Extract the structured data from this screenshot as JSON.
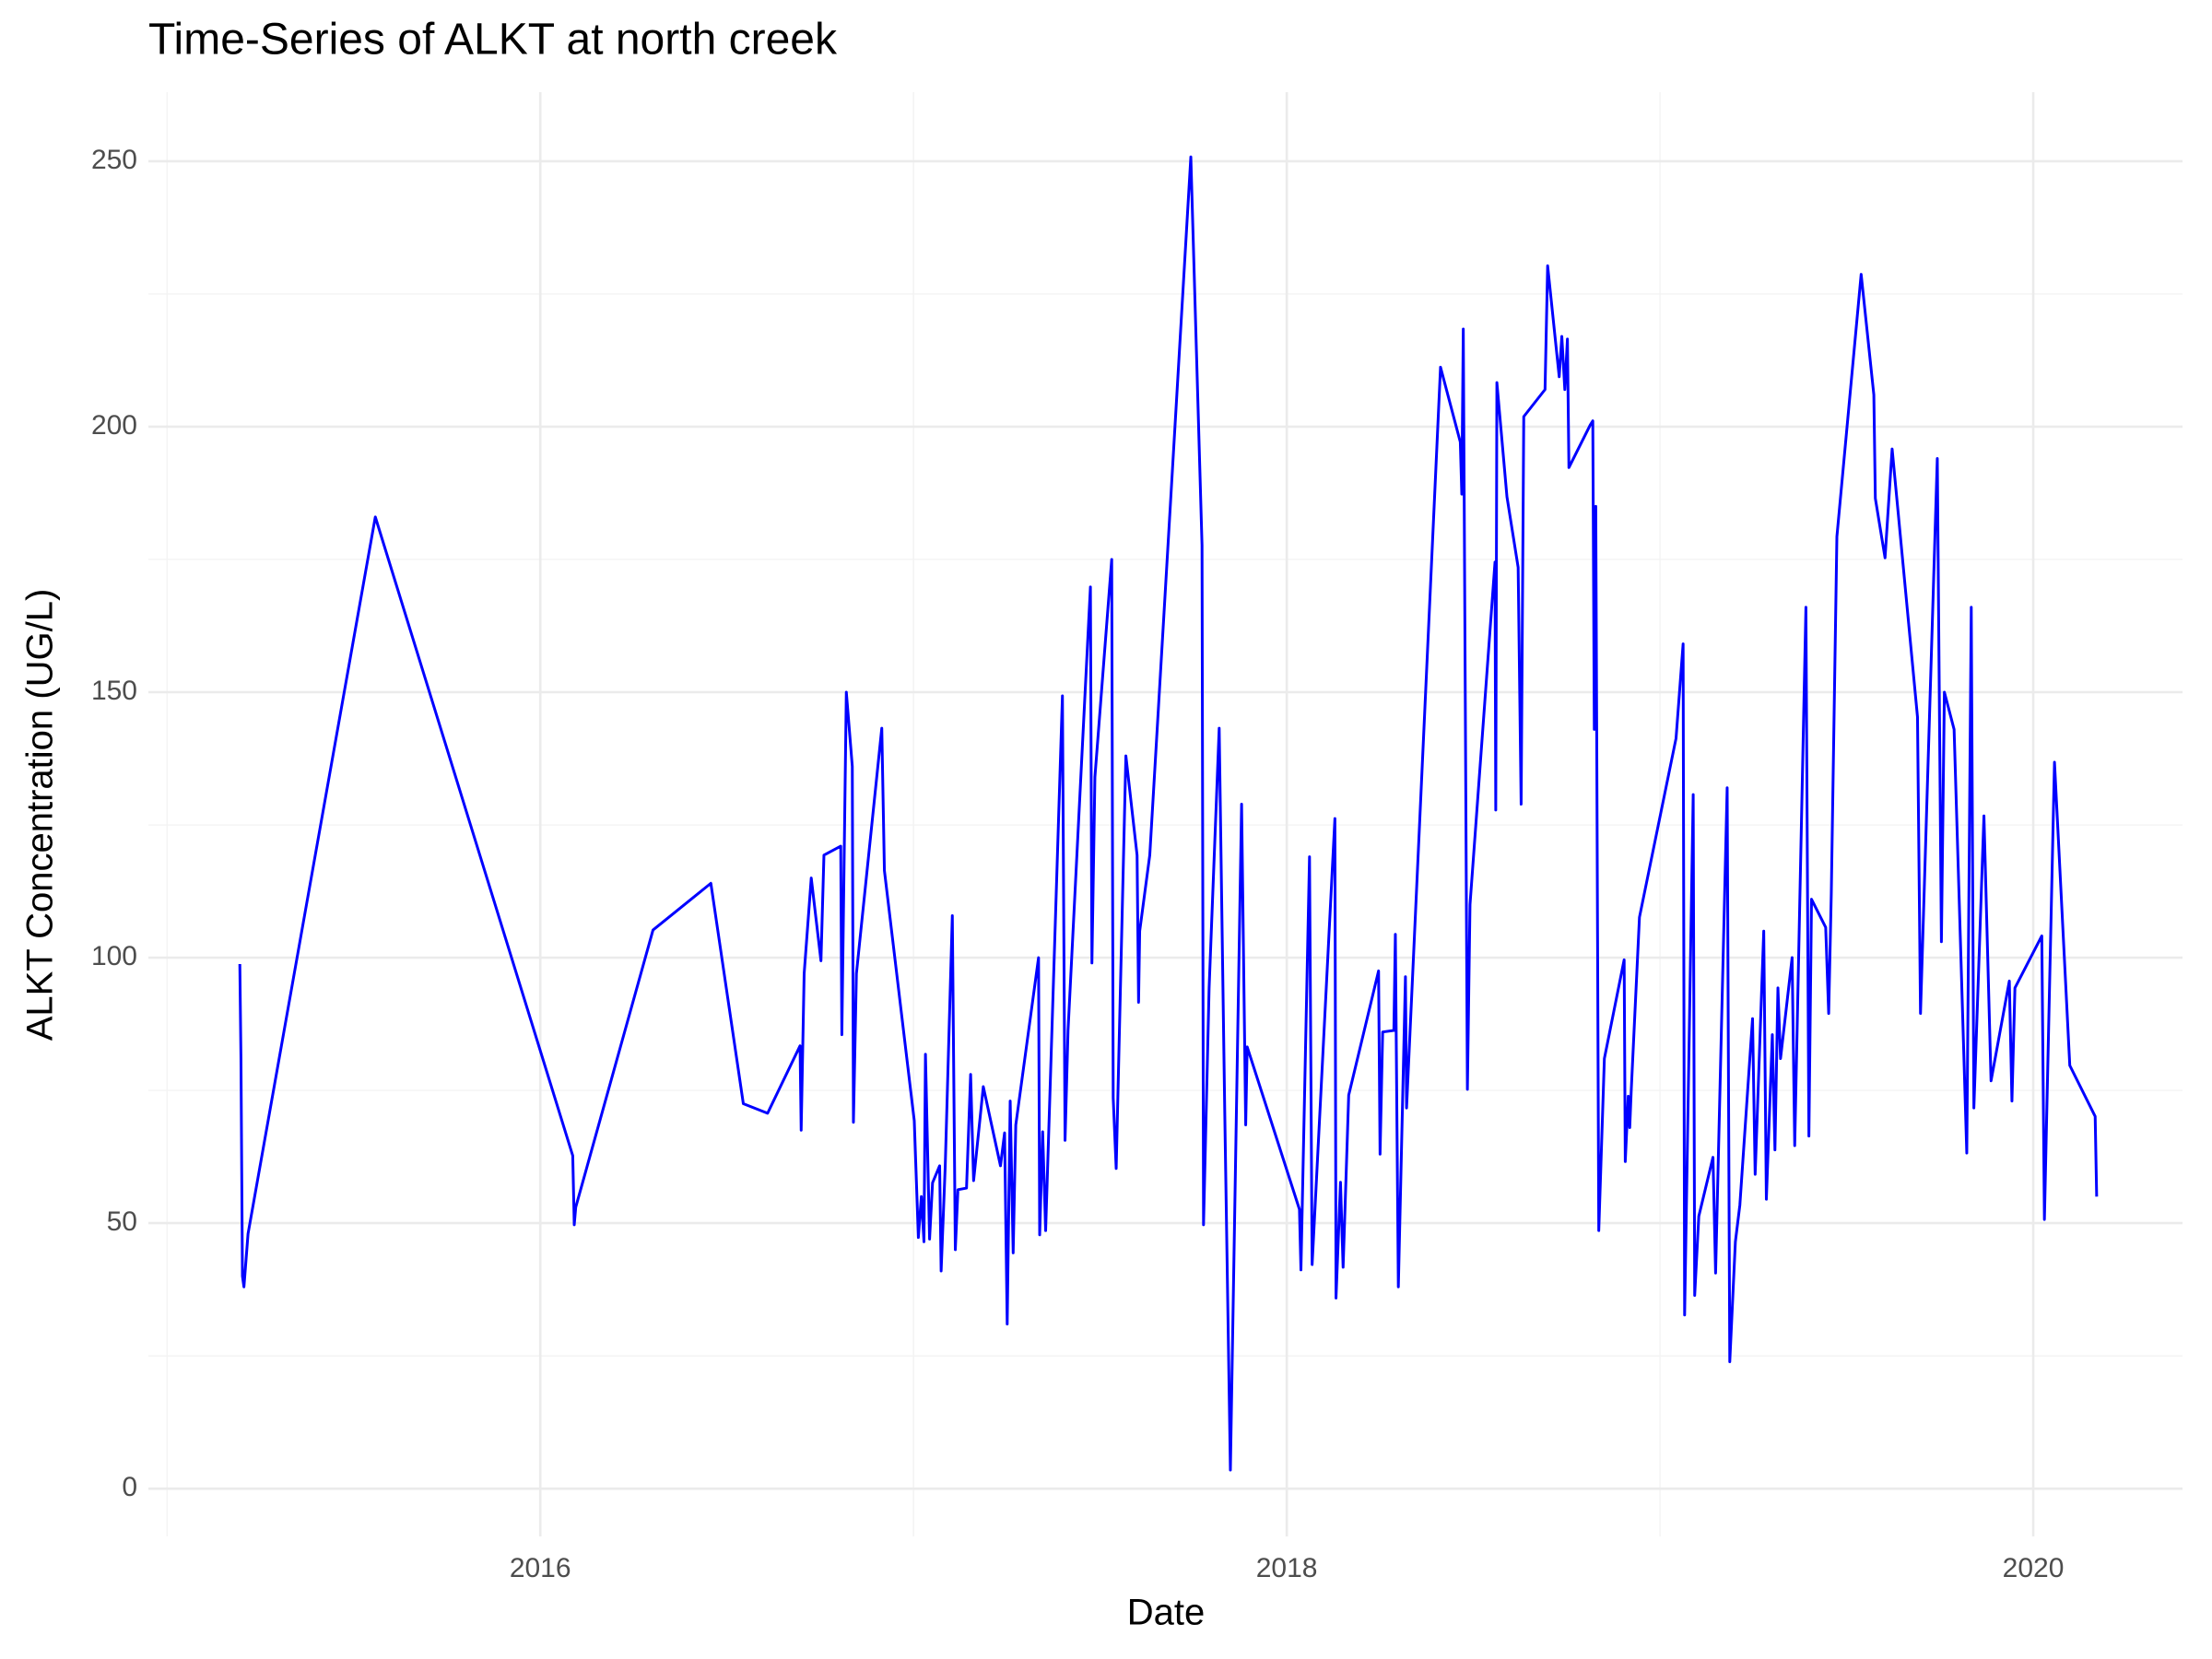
{
  "chart_data": {
    "type": "line",
    "title": "Time-Series of ALKT at north creek",
    "x_label": "Date",
    "y_label": "ALKT Concentration (UG/L)",
    "color": "#0000ff",
    "grid": true,
    "xlim": [
      2014.95,
      2020.4
    ],
    "xticks": [
      2016,
      2018,
      2020
    ],
    "ylim": [
      -9,
      263
    ],
    "yticks": [
      0,
      50,
      100,
      150,
      200,
      250
    ],
    "x": [
      2015.195,
      2015.198,
      2015.202,
      2015.206,
      2015.217,
      2015.558,
      2016.087,
      2016.091,
      2016.095,
      2016.302,
      2016.457,
      2016.544,
      2016.609,
      2016.696,
      2016.699,
      2016.707,
      2016.726,
      2016.752,
      2016.76,
      2016.805,
      2016.808,
      2016.82,
      2016.836,
      2016.839,
      2016.847,
      2016.915,
      2016.922,
      2017.002,
      2017.013,
      2017.021,
      2017.028,
      2017.032,
      2017.043,
      2017.051,
      2017.07,
      2017.074,
      2017.085,
      2017.104,
      2017.112,
      2017.119,
      2017.142,
      2017.153,
      2017.161,
      2017.187,
      2017.233,
      2017.244,
      2017.251,
      2017.259,
      2017.267,
      2017.274,
      2017.335,
      2017.338,
      2017.346,
      2017.354,
      2017.399,
      2017.406,
      2017.414,
      2017.474,
      2017.478,
      2017.486,
      2017.531,
      2017.535,
      2017.543,
      2017.569,
      2017.599,
      2017.603,
      2017.606,
      2017.633,
      2017.743,
      2017.773,
      2017.777,
      2017.792,
      2017.819,
      2017.834,
      2017.849,
      2017.879,
      2017.89,
      2017.894,
      2018.034,
      2018.038,
      2018.061,
      2018.068,
      2018.129,
      2018.132,
      2018.144,
      2018.151,
      2018.166,
      2018.246,
      2018.25,
      2018.257,
      2018.287,
      2018.291,
      2018.299,
      2018.318,
      2018.321,
      2018.412,
      2018.465,
      2018.469,
      2018.473,
      2018.484,
      2018.491,
      2018.558,
      2018.56,
      2018.563,
      2018.59,
      2018.62,
      2018.628,
      2018.635,
      2018.692,
      2018.699,
      2018.73,
      2018.737,
      2018.745,
      2018.752,
      2018.756,
      2018.813,
      2018.82,
      2018.824,
      2018.828,
      2018.836,
      2018.851,
      2018.904,
      2018.907,
      2018.915,
      2018.919,
      2018.923,
      2018.945,
      2019.043,
      2019.062,
      2019.066,
      2019.089,
      2019.093,
      2019.104,
      2019.142,
      2019.149,
      2019.18,
      2019.187,
      2019.202,
      2019.214,
      2019.248,
      2019.255,
      2019.278,
      2019.285,
      2019.301,
      2019.308,
      2019.316,
      2019.323,
      2019.354,
      2019.361,
      2019.391,
      2019.399,
      2019.406,
      2019.444,
      2019.452,
      2019.459,
      2019.474,
      2019.539,
      2019.573,
      2019.577,
      2019.603,
      2019.622,
      2019.69,
      2019.698,
      2019.743,
      2019.754,
      2019.762,
      2019.788,
      2019.822,
      2019.834,
      2019.841,
      2019.868,
      2019.887,
      2019.936,
      2019.943,
      2019.951,
      2020.023,
      2020.03,
      2020.057,
      2020.098,
      2020.166,
      2020.17
    ],
    "values": [
      98.8,
      81,
      40,
      38,
      48,
      183,
      62.7,
      49.7,
      53,
      105.2,
      114,
      72.5,
      70.7,
      83.4,
      67.5,
      97,
      115,
      99.4,
      119.3,
      121,
      85.5,
      150,
      136,
      69,
      97,
      143.2,
      116.4,
      69.3,
      47.3,
      55,
      46.5,
      81.8,
      47,
      57.6,
      60.8,
      41,
      60.8,
      107.9,
      45,
      56.3,
      56.6,
      78,
      58,
      75.7,
      60.8,
      67,
      31,
      73,
      44.4,
      68.5,
      100,
      47.8,
      67.2,
      48.6,
      149.3,
      65.6,
      86.3,
      169.8,
      99,
      134,
      175,
      73.6,
      60.3,
      138,
      119.3,
      91.6,
      105,
      119.3,
      250.8,
      177.7,
      49.7,
      94.3,
      143.2,
      70.4,
      3.5,
      128.9,
      68.5,
      83.2,
      52.6,
      41.2,
      119,
      42.2,
      126.2,
      35.9,
      57.7,
      41.7,
      74.1,
      97.5,
      63,
      86,
      86.3,
      104.4,
      38,
      96.4,
      71.7,
      211.2,
      197.1,
      187.3,
      218.4,
      75.2,
      110,
      174.5,
      127.8,
      208.3,
      186.8,
      173.5,
      128.9,
      201.9,
      207,
      230.3,
      209.4,
      217,
      207,
      216.5,
      192.3,
      200.3,
      201.1,
      143,
      185,
      48.6,
      81,
      99.6,
      61.6,
      73.9,
      68,
      75,
      107.6,
      141.3,
      159.1,
      32.7,
      130.7,
      36.4,
      51.3,
      62.4,
      40.6,
      132,
      23.9,
      46.5,
      53.4,
      88.5,
      59.2,
      105,
      54.5,
      85.5,
      63.8,
      94.3,
      81,
      100,
      64.6,
      166,
      66.4,
      111,
      105.7,
      89.5,
      112.1,
      179.3,
      228.7,
      206,
      186.5,
      175.3,
      195.8,
      145.3,
      89.5,
      194,
      103,
      150,
      143,
      63.2,
      166,
      71.7,
      126.7,
      76.8,
      95.6,
      73,
      94.3,
      104.1,
      50.7,
      136.8,
      79.7,
      70.1,
      55
    ]
  }
}
